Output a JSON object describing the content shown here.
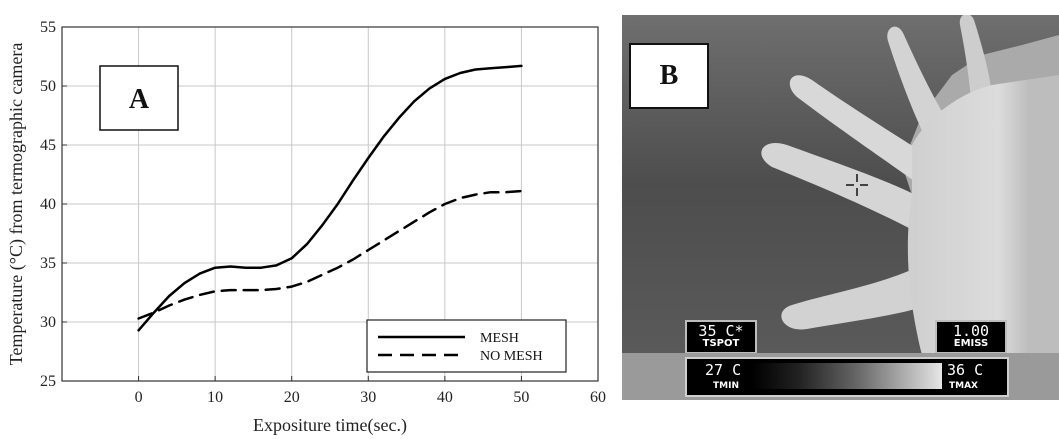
{
  "chart_data": {
    "type": "line",
    "title": "",
    "xlabel": "Expositure time(sec.)",
    "ylabel": "Temperature (°C) from termographic camera",
    "xlim": [
      -10,
      60
    ],
    "ylim": [
      25,
      55
    ],
    "xticks": [
      0,
      10,
      20,
      30,
      40,
      50,
      60
    ],
    "yticks": [
      25,
      30,
      35,
      40,
      45,
      50,
      55
    ],
    "grid": true,
    "legend_position": "bottom-right",
    "series": [
      {
        "name": "MESH",
        "style": "solid",
        "x": [
          0,
          2,
          4,
          6,
          8,
          10,
          12,
          14,
          16,
          18,
          20,
          22,
          24,
          26,
          28,
          30,
          32,
          34,
          36,
          38,
          40,
          42,
          44,
          46,
          48,
          50
        ],
        "y": [
          29.3,
          30.8,
          32.2,
          33.3,
          34.1,
          34.6,
          34.7,
          34.6,
          34.6,
          34.8,
          35.4,
          36.6,
          38.2,
          40.0,
          42.0,
          43.9,
          45.7,
          47.3,
          48.7,
          49.8,
          50.6,
          51.1,
          51.4,
          51.5,
          51.6,
          51.7
        ]
      },
      {
        "name": "NO MESH",
        "style": "dashed",
        "x": [
          0,
          2,
          4,
          6,
          8,
          10,
          12,
          14,
          16,
          18,
          20,
          22,
          24,
          26,
          28,
          30,
          32,
          34,
          36,
          38,
          40,
          42,
          44,
          46,
          48,
          50
        ],
        "y": [
          30.3,
          30.8,
          31.4,
          31.9,
          32.3,
          32.6,
          32.7,
          32.7,
          32.7,
          32.8,
          33.0,
          33.4,
          34.0,
          34.6,
          35.3,
          36.1,
          36.9,
          37.7,
          38.5,
          39.3,
          40.0,
          40.5,
          40.8,
          41.0,
          41.0,
          41.1
        ]
      }
    ]
  },
  "panels": {
    "a_label": "A",
    "b_label": "B"
  },
  "camera": {
    "tspot_value": "35 C*",
    "tspot_label": "TSPOT",
    "emiss_value": "1.00",
    "emiss_label": "EMISS",
    "tmin_value": "27 C",
    "tmin_label": "TMIN",
    "tmax_value": "36 C",
    "tmax_label": "TMAX"
  }
}
